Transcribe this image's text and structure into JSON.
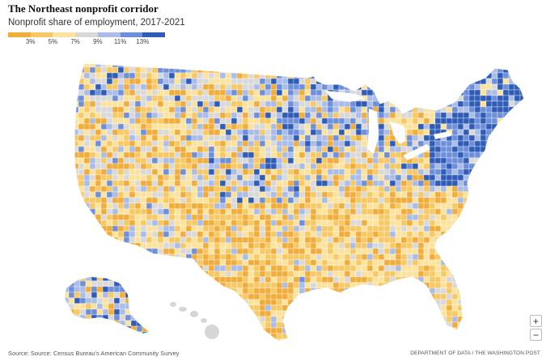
{
  "header": {
    "title": "The Northeast nonprofit corridor",
    "subtitle": "Nonprofit share of employment, 2017-2021"
  },
  "legend": {
    "ticks": [
      "3%",
      "5%",
      "7%",
      "9%",
      "11%",
      "13%"
    ],
    "colors": [
      "#f0ad3b",
      "#f6c964",
      "#fbe29d",
      "#d9d9d9",
      "#a9bde8",
      "#6e8fd9",
      "#2f5cb6"
    ]
  },
  "map": {
    "region": "United States counties",
    "high_share_regions": [
      "Northeast",
      "Upper Midwest",
      "Alaska"
    ],
    "low_share_regions": [
      "Texas",
      "Southeast",
      "Mountain West"
    ]
  },
  "controls": {
    "zoom_in": "+",
    "zoom_out": "−"
  },
  "footer": {
    "source": "Source: Source: Census Bureau's American Community Survey",
    "credit": "DEPARTMENT OF DATA / THE WASHINGTON POST"
  }
}
